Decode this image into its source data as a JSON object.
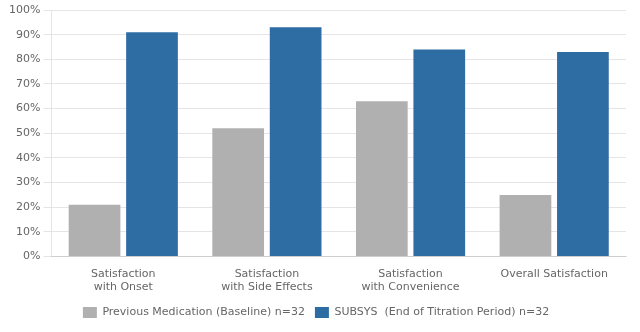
{
  "chart_data": {
    "type": "bar",
    "categories": [
      "Satisfaction\nwith Onset",
      "Satisfaction\nwith Side Effects",
      "Satisfaction\nwith Convenience",
      "Overall Satisfaction"
    ],
    "series": [
      {
        "name": "Previous Medication (Baseline) n=32",
        "color": "#b0b0b0",
        "values": [
          21,
          52,
          63,
          25
        ]
      },
      {
        "name": "SUBSYS  (End of Titration Period) n=32",
        "color": "#2e6da4",
        "values": [
          91,
          93,
          84,
          83
        ]
      }
    ],
    "ylim": [
      0,
      100
    ],
    "yticks": [
      {
        "value": 0,
        "label": "0%"
      },
      {
        "value": 10,
        "label": "10%"
      },
      {
        "value": 20,
        "label": "20%"
      },
      {
        "value": 30,
        "label": "30%"
      },
      {
        "value": 40,
        "label": "40%"
      },
      {
        "value": 50,
        "label": "50%"
      },
      {
        "value": 60,
        "label": "60%"
      },
      {
        "value": 70,
        "label": "70%"
      },
      {
        "value": 80,
        "label": "80%"
      },
      {
        "value": 90,
        "label": "90%"
      },
      {
        "value": 100,
        "label": "100%"
      }
    ],
    "grid": true,
    "legend": "bottom"
  }
}
